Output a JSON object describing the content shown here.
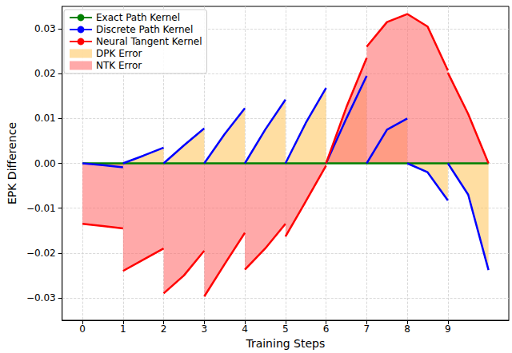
{
  "chart_data": {
    "type": "line",
    "xlabel": "Training Steps",
    "ylabel": "EPK Difference",
    "xlim": [
      -0.5,
      10.5
    ],
    "xticks": [
      0,
      1,
      2,
      3,
      4,
      5,
      6,
      7,
      8,
      9
    ],
    "ylim": [
      -0.035,
      0.035
    ],
    "yticks": [
      {
        "value": -0.03,
        "label": "−0.03"
      },
      {
        "value": -0.02,
        "label": "−0.02"
      },
      {
        "value": -0.01,
        "label": "−0.01"
      },
      {
        "value": 0,
        "label": "0.00"
      },
      0.01,
      0.02,
      0.03
    ],
    "grid": true,
    "legend": "upper left",
    "series": [
      {
        "name": "Exact Path Kernel",
        "type": "line",
        "color": "#008000",
        "x": [
          0,
          10
        ],
        "values": [
          0,
          0
        ]
      },
      {
        "name": "Discrete Path Kernel",
        "type": "line",
        "color": "#0000ff",
        "x": [
          0,
          0.5,
          1,
          1,
          1,
          1.5,
          2,
          2,
          2,
          2.5,
          3,
          3,
          3,
          3.5,
          4,
          4,
          4,
          4.5,
          5,
          5,
          5,
          5.5,
          6,
          6,
          6,
          6.5,
          7,
          7,
          7,
          7.5,
          8,
          8,
          8,
          8.5,
          9,
          9,
          9,
          9.5,
          10
        ],
        "values": [
          0,
          -0.0004,
          -0.0009,
          null,
          0,
          0.0017,
          0.0035,
          null,
          0,
          0.004,
          0.0078,
          null,
          0,
          0.0065,
          0.0123,
          null,
          0,
          0.0075,
          0.0142,
          null,
          0,
          0.009,
          0.0168,
          null,
          0,
          0.01,
          0.0195,
          null,
          0,
          0.0075,
          0.01,
          null,
          0,
          -0.002,
          -0.0083,
          null,
          0,
          -0.007,
          -0.0238
        ]
      },
      {
        "name": "Neural Tangent Kernel",
        "type": "line",
        "color": "#ff0000",
        "x": [
          0,
          0.5,
          1,
          1,
          1,
          1.5,
          2,
          2,
          2,
          2.5,
          3,
          3,
          3,
          3.5,
          4,
          4,
          4,
          4.5,
          5,
          5,
          5,
          5.5,
          6,
          6,
          6,
          6.5,
          7,
          7,
          7,
          7.5,
          8,
          8.5,
          9,
          9,
          9,
          9.5,
          10
        ],
        "values": [
          -0.0135,
          -0.014,
          -0.0145,
          null,
          -0.024,
          -0.0215,
          -0.019,
          null,
          -0.029,
          -0.025,
          -0.0195,
          null,
          -0.0297,
          -0.0225,
          -0.0155,
          null,
          -0.0237,
          -0.019,
          -0.0135,
          null,
          -0.0163,
          -0.0085,
          -0.0005,
          null,
          0,
          0.0125,
          0.0235,
          null,
          0.026,
          0.0315,
          0.0333,
          0.0305,
          0.0207,
          null,
          0.0202,
          0.011,
          0
        ]
      },
      {
        "name": "DPK Error",
        "type": "area",
        "color": "#ffc864",
        "x": [
          0,
          0.5,
          1,
          1,
          1,
          1.5,
          2,
          2,
          2,
          2.5,
          3,
          3,
          3,
          3.5,
          4,
          4,
          4,
          4.5,
          5,
          5,
          5,
          5.5,
          6,
          6,
          6,
          6.5,
          7,
          7,
          7,
          7.5,
          8,
          8,
          8,
          8.5,
          9,
          9,
          9,
          9.5,
          10
        ],
        "values": [
          0,
          -0.0004,
          -0.0009,
          null,
          0,
          0.0017,
          0.0035,
          null,
          0,
          0.004,
          0.0078,
          null,
          0,
          0.0065,
          0.0123,
          null,
          0,
          0.0075,
          0.0142,
          null,
          0,
          0.009,
          0.0168,
          null,
          0,
          0.01,
          0.0195,
          null,
          0,
          0.0075,
          0.01,
          null,
          0,
          -0.002,
          -0.0083,
          null,
          0,
          -0.007,
          -0.0238
        ]
      },
      {
        "name": "NTK Error",
        "type": "area",
        "color": "#ff7070",
        "x": [
          0,
          0.5,
          1,
          1,
          1,
          1.5,
          2,
          2,
          2,
          2.5,
          3,
          3,
          3,
          3.5,
          4,
          4,
          4,
          4.5,
          5,
          5,
          5,
          5.5,
          6,
          6,
          6,
          6.5,
          7,
          7,
          7,
          7.5,
          8,
          8.5,
          9,
          9,
          9,
          9.5,
          10
        ],
        "values": [
          -0.0135,
          -0.014,
          -0.0145,
          null,
          -0.024,
          -0.0215,
          -0.019,
          null,
          -0.029,
          -0.025,
          -0.0195,
          null,
          -0.0297,
          -0.0225,
          -0.0155,
          null,
          -0.0237,
          -0.019,
          -0.0135,
          null,
          -0.0163,
          -0.0085,
          -0.0005,
          null,
          0,
          0.0125,
          0.0235,
          null,
          0.026,
          0.0315,
          0.0333,
          0.0305,
          0.0207,
          null,
          0.0202,
          0.011,
          0
        ]
      }
    ]
  }
}
